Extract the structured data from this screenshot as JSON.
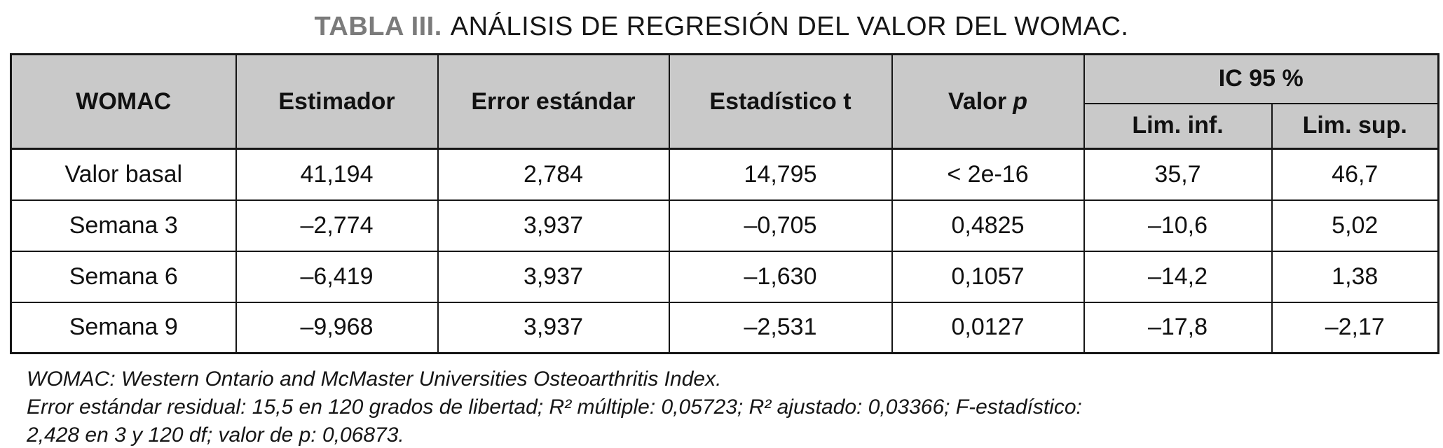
{
  "title": {
    "label": "TABLA III.",
    "text": "ANÁLISIS DE REGRESIÓN DEL VALOR DEL WOMAC."
  },
  "table": {
    "headers": {
      "womac": "WOMAC",
      "estimador": "Estimador",
      "error_estandar": "Error estándar",
      "estadistico_t": "Estadístico t",
      "valor_p_label": "Valor",
      "valor_p_symbol": "p",
      "ic95": "IC 95 %",
      "lim_inf": "Lim. inf.",
      "lim_sup": "Lim. sup."
    },
    "rows": [
      {
        "womac": "Valor basal",
        "estimador": "41,194",
        "error_estandar": "2,784",
        "estadistico_t": "14,795",
        "valor_p": "< 2e-16",
        "lim_inf": "35,7",
        "lim_sup": "46,7"
      },
      {
        "womac": "Semana 3",
        "estimador": "–2,774",
        "error_estandar": "3,937",
        "estadistico_t": "–0,705",
        "valor_p": "0,4825",
        "lim_inf": "–10,6",
        "lim_sup": "5,02"
      },
      {
        "womac": "Semana 6",
        "estimador": "–6,419",
        "error_estandar": "3,937",
        "estadistico_t": "–1,630",
        "valor_p": "0,1057",
        "lim_inf": "–14,2",
        "lim_sup": "1,38"
      },
      {
        "womac": "Semana 9",
        "estimador": "–9,968",
        "error_estandar": "3,937",
        "estadistico_t": "–2,531",
        "valor_p": "0,0127",
        "lim_inf": "–17,8",
        "lim_sup": "–2,17"
      }
    ]
  },
  "footnotes": {
    "lines": [
      "WOMAC: Western Ontario and McMaster Universities Osteoarthritis Index.",
      "Error estándar residual: 15,5 en 120 grados de libertad; R² múltiple: 0,05723; R² ajustado: 0,03366; F-estadístico:",
      "2,428 en 3 y 120 df; valor de p: 0,06873."
    ]
  },
  "colors": {
    "header_bg": "#c9c9c9",
    "title_label": "#7b7b7b",
    "border": "#161616"
  }
}
